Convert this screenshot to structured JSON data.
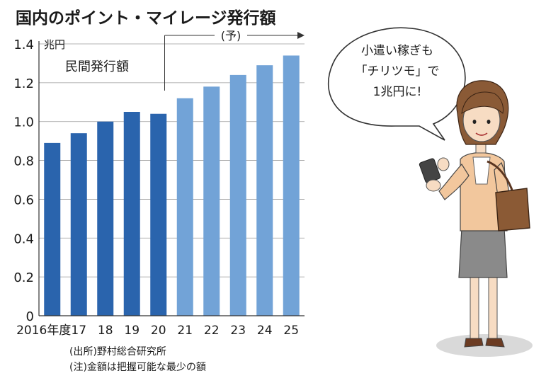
{
  "title": "国内のポイント・マイレージ発行額",
  "chart_data": {
    "type": "bar",
    "unit": "兆円",
    "series_label": "民間発行額",
    "forecast_label": "(予)",
    "categories": [
      "2016年度",
      "17",
      "18",
      "19",
      "20",
      "21",
      "22",
      "23",
      "24",
      "25"
    ],
    "values": [
      0.89,
      0.94,
      1.0,
      1.05,
      1.04,
      1.12,
      1.18,
      1.24,
      1.29,
      1.34
    ],
    "forecast_from_index": 5,
    "ylim": [
      0,
      1.4
    ],
    "yticks": [
      "0",
      "0.2",
      "0.4",
      "0.6",
      "0.8",
      "1.0",
      "1.2",
      "1.4"
    ],
    "grid": true,
    "colors": {
      "actual": "#2a64ad",
      "forecast": "#72a3d7"
    }
  },
  "notes": {
    "source": "(出所)野村総合研究所",
    "note": "(注)金額は把握可能な最少の額"
  },
  "bubble": {
    "lines": [
      "小遣い稼ぎも",
      "「チリツモ」で",
      "1兆円に!"
    ]
  },
  "icons": {
    "illustration": "woman-with-smartphone-icon"
  }
}
